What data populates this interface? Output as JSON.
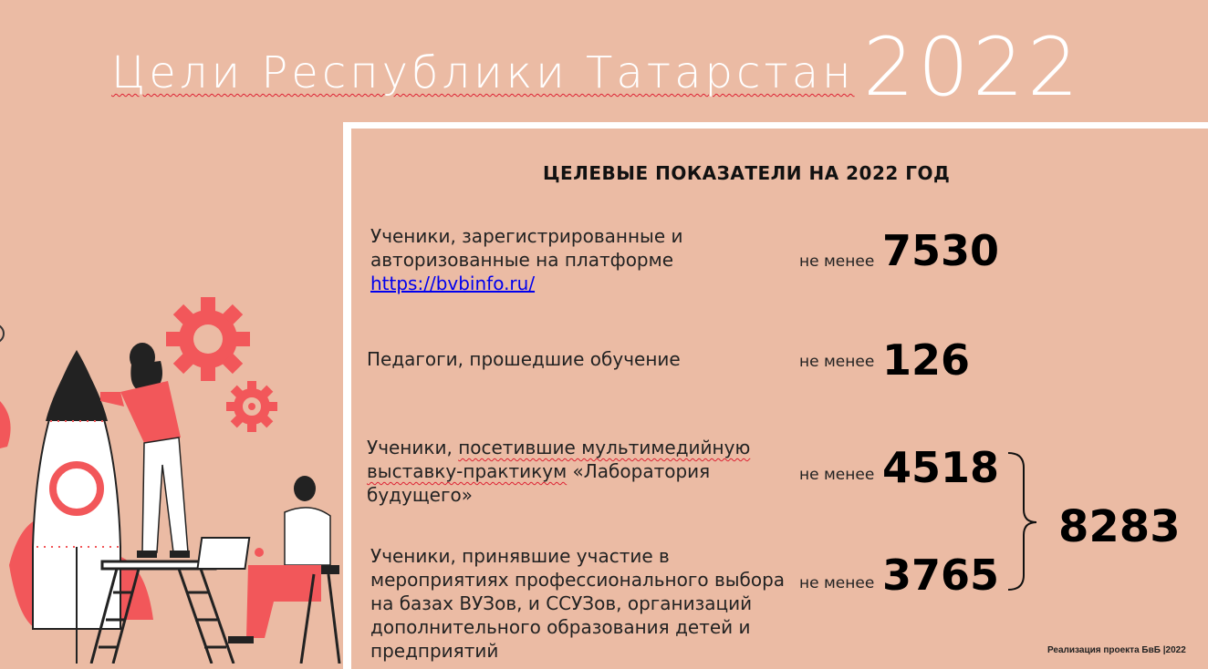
{
  "header": {
    "title": "Цели Республики Татарстан",
    "year": "2022"
  },
  "panel": {
    "section_title": "ЦЕЛЕВЫЕ ПОКАЗАТЕЛИ  НА 2022 ГОД",
    "rows": [
      {
        "label_line1": "Ученики, зарегистрированные и",
        "label_line2": "авторизованные на платформе",
        "link": "https://bvbinfo.ru/",
        "minimum": "не менее",
        "value": "7530"
      },
      {
        "label": "Педагоги, прошедшие  обучение",
        "minimum": "не менее",
        "value": "126"
      },
      {
        "label_prefix": "Ученики, ",
        "label_line1_u": "посетившие мультимедийную",
        "label_line2_u": "выставку-практикум",
        "label_line2_rest": " «Лаборатория",
        "label_line3": "будущего»",
        "minimum": "не менее",
        "value": "4518"
      },
      {
        "label_line1": "Ученики, принявшие участие в",
        "label_line2": "мероприятиях профессионального выбора",
        "label_line3": "на базах ВУЗов, и ССУЗов, организаций",
        "label_line4": "дополнительного образования детей и",
        "label_line5": "предприятий",
        "minimum": "не менее",
        "value": "3765"
      }
    ],
    "total": "8283"
  },
  "footer": {
    "text": "Реализация проекта БвБ  |2022"
  },
  "colors": {
    "background": "#ebbba4",
    "accent_red": "#f2575a",
    "white": "#ffffff"
  }
}
